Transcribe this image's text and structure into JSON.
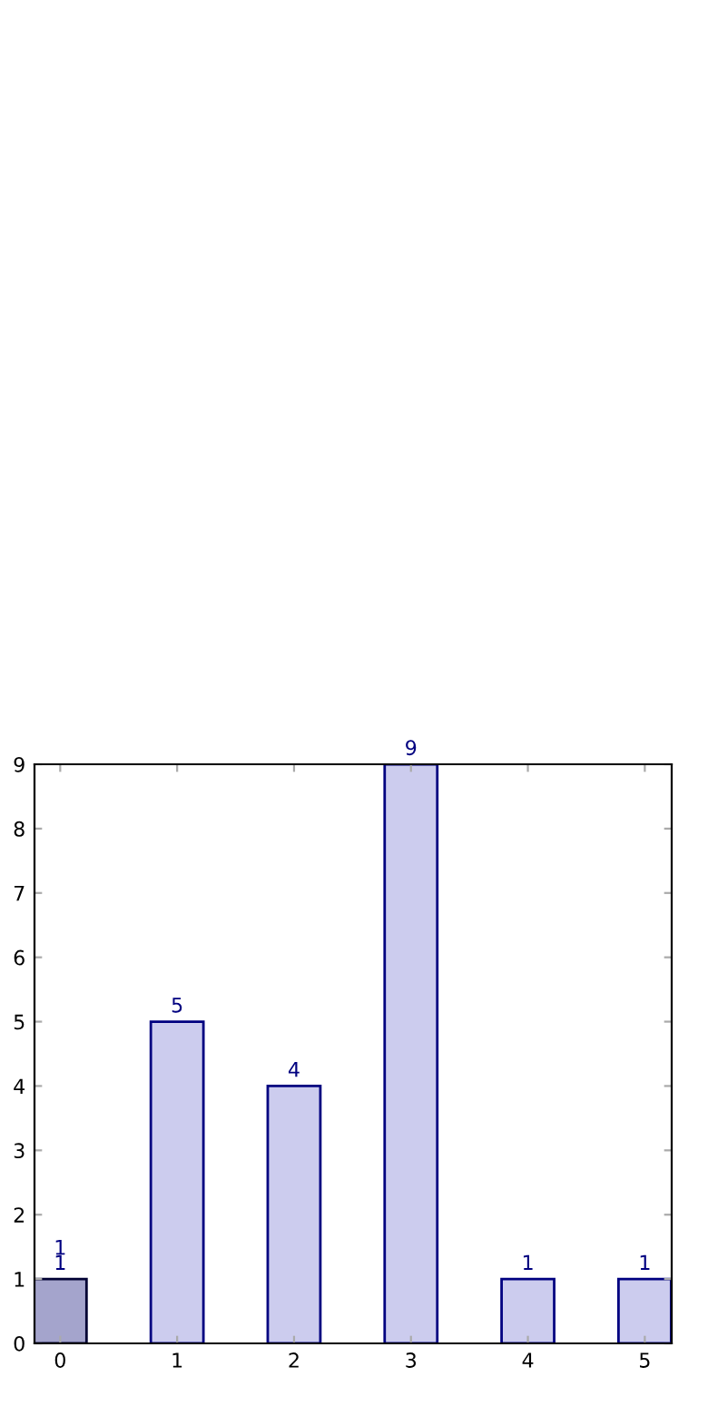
{
  "chart_data": {
    "type": "bar",
    "categories": [
      "0",
      "1",
      "2",
      "3",
      "4",
      "5"
    ],
    "series": [
      {
        "colors": [
          "#a4a4cc",
          "#ccccee",
          "#ccccee",
          "#ccccee",
          "#ccccee",
          "#ccccee"
        ],
        "values": [
          1,
          5,
          4,
          9,
          1,
          1
        ]
      }
    ],
    "annotations": [
      {
        "text": "1",
        "x": "0",
        "y": 1
      }
    ],
    "ylim": [
      0,
      9
    ],
    "yticks": [
      0,
      1,
      2,
      3,
      4,
      5,
      6,
      7,
      8,
      9
    ],
    "data_labels": true
  }
}
